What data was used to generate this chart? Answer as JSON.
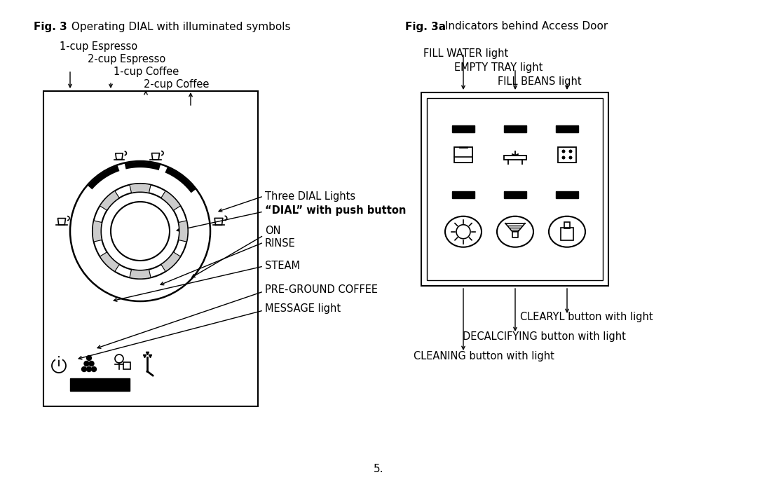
{
  "bg_color": "#ffffff",
  "fig3_title_bold": "Fig. 3",
  "fig3_title_normal": " Operating DIAL with illuminated symbols",
  "fig3a_title_bold": "Fig. 3a",
  "fig3a_title_normal": " Indicators behind Access Door",
  "left_labels": [
    "1-cup Espresso",
    "2-cup Espresso",
    "1-cup Coffee",
    "2-cup Coffee"
  ],
  "dial_label1": "Three DIAL Lights",
  "dial_label2": "“DIAL” with push button",
  "dial_labels_right": [
    "ON",
    "RINSE",
    "STEAM",
    "PRE-GROUND COFFEE",
    "MESSAGE light"
  ],
  "panel_labels_top": [
    "FILL WATER light",
    "EMPTY TRAY light",
    "FILL BEANS light"
  ],
  "panel_labels_bot": [
    "CLEARYL button with light",
    "DECALCIFYING button with light",
    "CLEANING button with light"
  ],
  "page_number": "5."
}
